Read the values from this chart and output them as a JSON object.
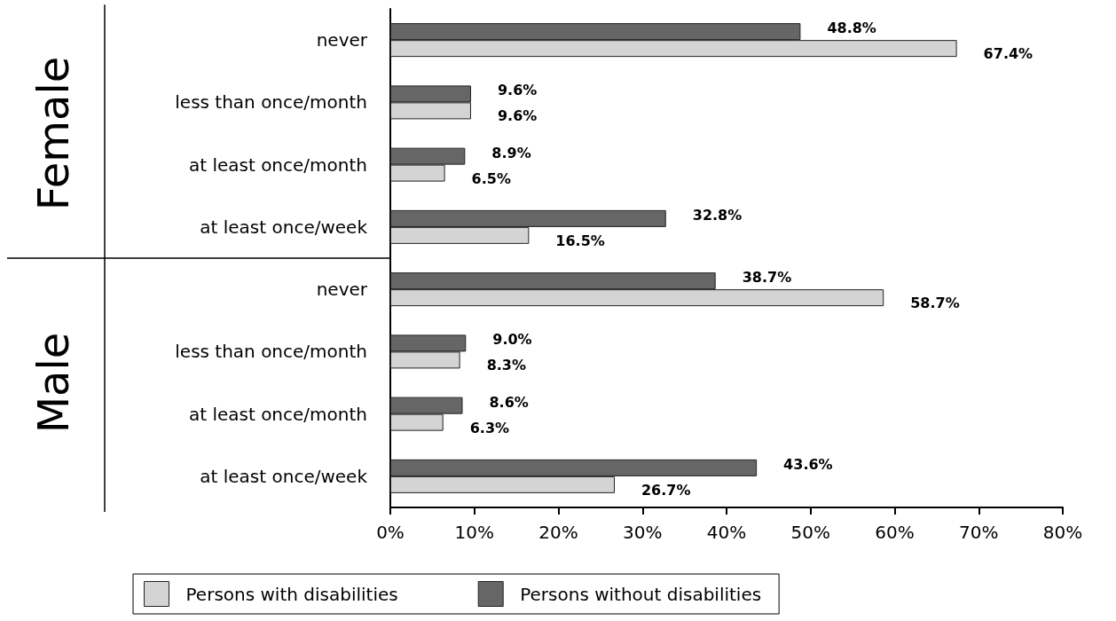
{
  "chart_data": {
    "type": "bar",
    "orientation": "horizontal",
    "categories": [
      "never",
      "less than once/month",
      "at least once/month",
      "at least once/week",
      "never",
      "less than once/month",
      "at least once/month",
      "at least once/week"
    ],
    "series": [
      {
        "name": "Persons with disabilities",
        "color": "#d4d4d4",
        "values": [
          67.4,
          9.6,
          6.5,
          16.5,
          58.7,
          8.3,
          6.3,
          26.7
        ],
        "value_labels": [
          "67.4%",
          "9.6%",
          "6.5%",
          "16.5%",
          "58.7%",
          "8.3%",
          "6.3%",
          "26.7%"
        ]
      },
      {
        "name": "Persons without disabilities",
        "color": "#666666",
        "values": [
          48.8,
          9.6,
          8.9,
          32.8,
          38.7,
          9.0,
          8.6,
          43.6
        ],
        "value_labels": [
          "48.8%",
          "9.6%",
          "8.9%",
          "32.8%",
          "38.7%",
          "9.0%",
          "8.6%",
          "43.6%"
        ]
      }
    ],
    "xlim": [
      0,
      80
    ],
    "xticks": [
      {
        "value": 0,
        "label": "0%"
      },
      {
        "value": 10,
        "label": "10%"
      },
      {
        "value": 20,
        "label": "20%"
      },
      {
        "value": 30,
        "label": "30%"
      },
      {
        "value": 40,
        "label": "40%"
      },
      {
        "value": 50,
        "label": "50%"
      },
      {
        "value": 60,
        "label": "60%"
      },
      {
        "value": 70,
        "label": "70%"
      },
      {
        "value": 80,
        "label": "80%"
      }
    ],
    "annotations": [
      "Female",
      "Male"
    ],
    "grid": false,
    "legend": "bottom"
  }
}
